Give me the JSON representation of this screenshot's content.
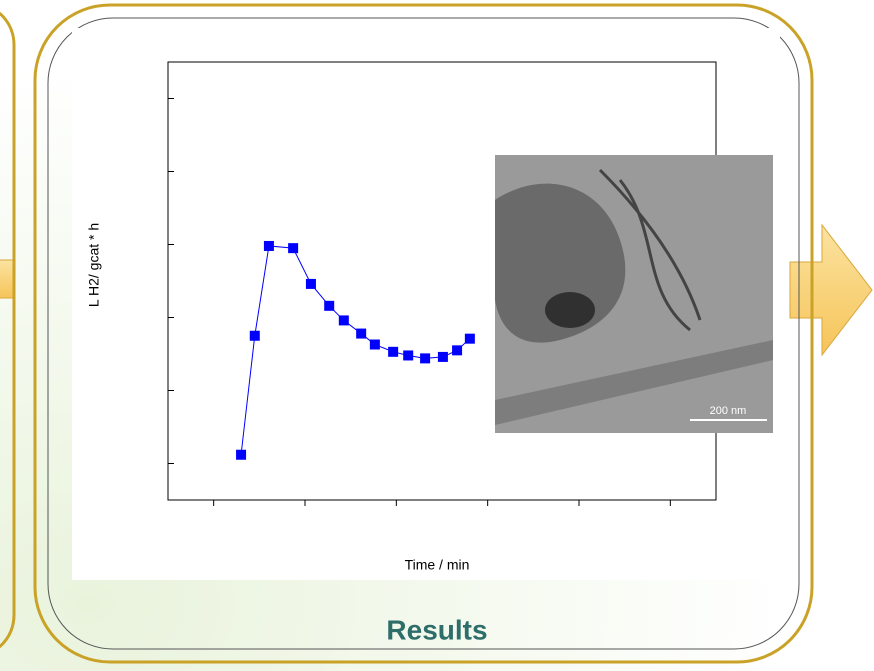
{
  "chart_data": {
    "type": "line",
    "y_label": "L H2/ gcat * h",
    "x_label": "Time / min",
    "x": [
      1.6,
      1.9,
      2.21,
      2.74,
      3.13,
      3.53,
      3.85,
      4.23,
      4.53,
      4.93,
      5.26,
      5.63,
      6.02,
      6.33,
      6.61
    ],
    "series": [
      {
        "color": "#0000ff",
        "values": [
          1.12,
          2.75,
          3.98,
          3.95,
          3.46,
          3.16,
          2.96,
          2.78,
          2.63,
          2.53,
          2.48,
          2.44,
          2.46,
          2.55,
          2.71
        ]
      }
    ],
    "xlim": [
      0,
      12
    ],
    "ylim": [
      0.5,
      6.5
    ],
    "xticks": [
      1,
      3,
      5,
      7,
      9,
      11
    ],
    "yticks": [
      1,
      2,
      3,
      4,
      5,
      6
    ]
  },
  "image": {
    "scale_label": "200 nm"
  },
  "section_title": "Results"
}
